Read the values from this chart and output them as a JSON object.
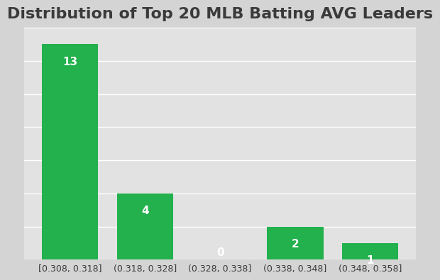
{
  "title": "Distribution of Top 20 MLB Batting AVG Leaders",
  "categories": [
    "[0.308, 0.318]",
    "(0.318, 0.328]",
    "(0.328, 0.338]",
    "(0.338, 0.348]",
    "(0.348, 0.358]"
  ],
  "values": [
    13,
    4,
    0,
    2,
    1
  ],
  "bar_color": "#22b14c",
  "label_color": "white",
  "label_fontsize": 11,
  "title_fontsize": 16,
  "title_fontweight": "bold",
  "background_color": "#d4d4d4",
  "plot_bg_color": "#e2e2e2",
  "ylim": [
    0,
    14
  ],
  "bar_width": 0.75,
  "grid_color": "white",
  "grid_linewidth": 1.0,
  "tick_label_fontsize": 9,
  "tick_label_color": "#3a3a3a"
}
